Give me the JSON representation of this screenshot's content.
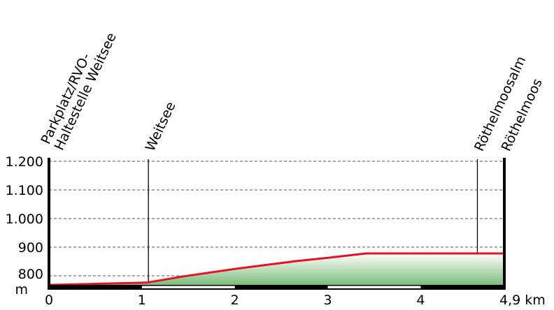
{
  "chart_data": {
    "type": "area",
    "xlabel_unit": "km",
    "ylabel_unit": "m",
    "xlim": [
      0,
      4.9
    ],
    "ylim": [
      768,
      1200
    ],
    "x_ticks": [
      {
        "value": 0,
        "label": "0"
      },
      {
        "value": 1,
        "label": "1"
      },
      {
        "value": 2,
        "label": "2"
      },
      {
        "value": 3,
        "label": "3"
      },
      {
        "value": 4,
        "label": "4"
      },
      {
        "value": 4.9,
        "label": "4,9 km"
      }
    ],
    "y_ticks": [
      {
        "value": 800,
        "label": "800"
      },
      {
        "value": 900,
        "label": "900"
      },
      {
        "value": 1000,
        "label": "1.000"
      },
      {
        "value": 1100,
        "label": "1.100"
      },
      {
        "value": 1200,
        "label": "1.200"
      }
    ],
    "y_unit_label": "m",
    "grid": "horizontal dashed",
    "profile": {
      "x": [
        0,
        1.05,
        1.45,
        2.0,
        2.65,
        3.0,
        3.41,
        4.9
      ],
      "y": [
        768,
        776,
        798,
        824,
        851,
        863,
        878,
        878
      ]
    },
    "waypoints": [
      {
        "km": 0,
        "lines": [
          "Parkplatz/RVO-",
          "Haltestelle Weitsee"
        ]
      },
      {
        "km": 1.07,
        "lines": [
          "Weitsee"
        ]
      },
      {
        "km": 4.61,
        "lines": [
          "Röthelmoosalm"
        ]
      },
      {
        "km": 4.9,
        "lines": [
          "Röthelmoos"
        ]
      }
    ],
    "colors": {
      "line": "#e8101e",
      "fill_bottom": "#7dbd7d",
      "fill_top": "#ffffff"
    }
  }
}
